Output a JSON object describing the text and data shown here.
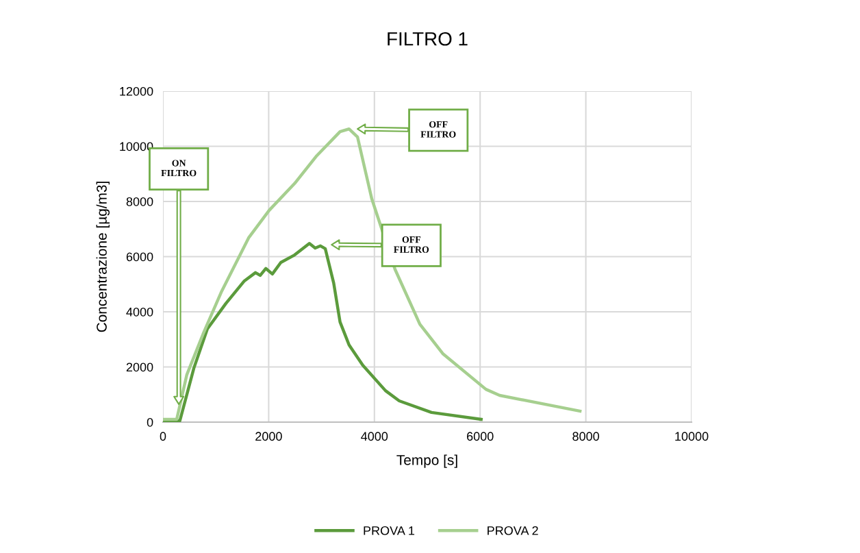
{
  "chart_data": {
    "type": "line",
    "title": "FILTRO 1",
    "xlabel": "Tempo [s]",
    "ylabel": "Concentrazione [µg/m3]",
    "xlim": [
      0,
      10000
    ],
    "xticks": [
      0,
      2000,
      4000,
      6000,
      8000,
      10000
    ],
    "ylim": [
      0,
      12000
    ],
    "yticks": [
      0,
      2000,
      4000,
      6000,
      8000,
      10000,
      12000
    ],
    "grid": true,
    "legend": "bottom",
    "line_style": "solid",
    "marker": "none",
    "series": [
      {
        "name": "PROVA 1",
        "color": "#5b9b3c",
        "x": [
          0,
          320,
          585,
          840,
          1190,
          1540,
          1750,
          1840,
          1945,
          2070,
          2230,
          2490,
          2770,
          2880,
          2980,
          3070,
          3230,
          3350,
          3520,
          3780,
          4210,
          4470,
          5080,
          6020
        ],
        "values": [
          50,
          50,
          1960,
          3380,
          4300,
          5120,
          5420,
          5320,
          5570,
          5370,
          5790,
          6060,
          6480,
          6310,
          6390,
          6290,
          5040,
          3630,
          2800,
          2060,
          1140,
          770,
          350,
          100
        ]
      },
      {
        "name": "PROVA 2",
        "color": "#a6cf8f",
        "x": [
          0,
          260,
          450,
          760,
          1100,
          1620,
          2010,
          2490,
          2910,
          3350,
          3520,
          3680,
          3950,
          4390,
          4860,
          5300,
          6110,
          6370,
          7890
        ],
        "values": [
          100,
          100,
          1710,
          3200,
          4700,
          6680,
          7680,
          8650,
          9660,
          10530,
          10630,
          10340,
          8100,
          5540,
          3550,
          2470,
          1190,
          970,
          400
        ]
      }
    ],
    "annotations": [
      "ON\nFILTRO",
      "OFF\nFILTRO",
      "OFF\nFILTRO"
    ]
  }
}
